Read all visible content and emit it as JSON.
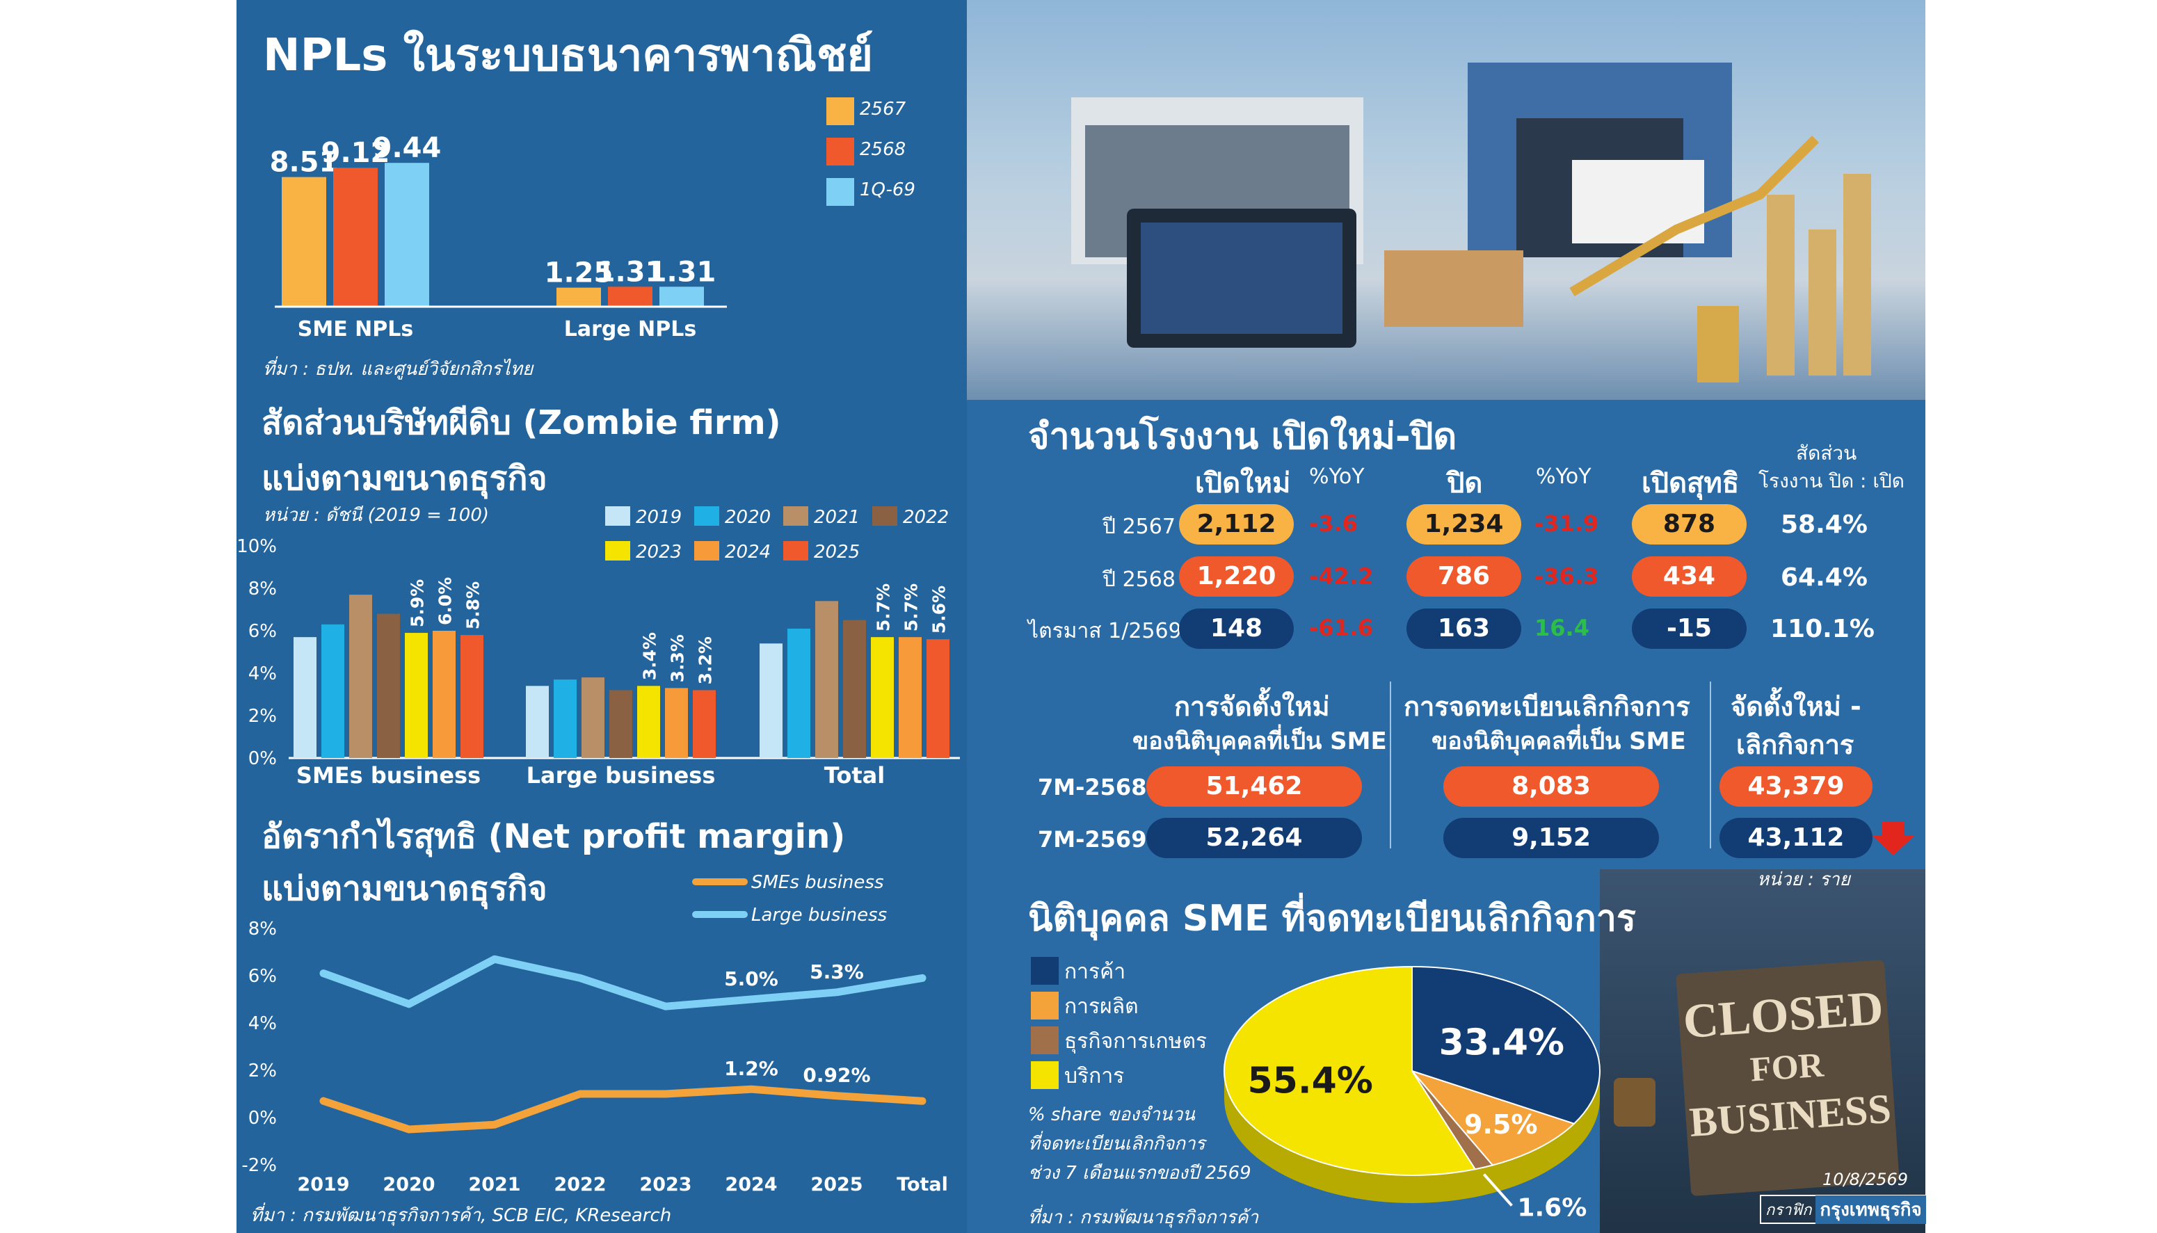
{
  "npl": {
    "title": "NPLs ในระบบธนาคารพาณิชย์",
    "source": "ที่มา : ธปท. และศูนย์วิจัยกสิกรไทย"
  },
  "zombie": {
    "title1": "สัดส่วนบริษัทผีดิบ (Zombie firm)",
    "title2": "แบ่งตามขนาดธุรกิจ",
    "unit": "หน่วย : ดัชนี (2019 = 100)"
  },
  "npm": {
    "title1": "อัตรากำไรสุทธิ (Net profit margin)",
    "title2": "แบ่งตามขนาดธุรกิจ",
    "source": "ที่มา : กรมพัฒนาธุรกิจการค้า, SCB EIC, KResearch"
  },
  "chart_data": [
    {
      "type": "bar",
      "categories": [
        "SME NPLs",
        "Large NPLs"
      ],
      "series": [
        {
          "name": "2567",
          "values": [
            8.51,
            1.25
          ],
          "color": "#f9b344"
        },
        {
          "name": "2568",
          "values": [
            9.12,
            1.31
          ],
          "color": "#f0592b"
        },
        {
          "name": "1Q-69",
          "values": [
            9.44,
            1.31
          ],
          "color": "#7fd0f5"
        }
      ],
      "ylim": [
        0,
        10.5
      ],
      "labels": [
        [
          "8.51",
          "1.25"
        ],
        [
          "9.12",
          "1.31"
        ],
        [
          "9.44",
          "1.31"
        ]
      ],
      "legend": "top-right"
    },
    {
      "type": "bar",
      "categories": [
        "SMEs business",
        "Large business",
        "Total"
      ],
      "series": [
        {
          "name": "2019",
          "values": [
            5.7,
            3.4,
            5.4
          ],
          "color": "#c5e6f7"
        },
        {
          "name": "2020",
          "values": [
            6.3,
            3.7,
            6.1
          ],
          "color": "#1fb1e6"
        },
        {
          "name": "2021",
          "values": [
            7.7,
            3.8,
            7.4
          ],
          "color": "#b98f68"
        },
        {
          "name": "2022",
          "values": [
            6.8,
            3.2,
            6.5
          ],
          "color": "#8a6142"
        },
        {
          "name": "2023",
          "values": [
            5.9,
            3.4,
            5.7
          ],
          "color": "#f5e400"
        },
        {
          "name": "2024",
          "values": [
            6.0,
            3.3,
            5.7
          ],
          "color": "#f79a3a"
        },
        {
          "name": "2025",
          "values": [
            5.8,
            3.2,
            5.6
          ],
          "color": "#f0592b"
        }
      ],
      "data_labels": {
        "2023": [
          "5.9%",
          "3.4%",
          "5.7%"
        ],
        "2024": [
          "6.0%",
          "3.3%",
          "5.7%"
        ],
        "2025": [
          "5.8%",
          "3.2%",
          "5.6%"
        ]
      },
      "yticks": [
        "0%",
        "2%",
        "4%",
        "6%",
        "8%",
        "10%"
      ],
      "ylim": [
        0,
        10
      ],
      "legend": "top-right"
    },
    {
      "type": "line",
      "x": [
        "2019",
        "2020",
        "2021",
        "2022",
        "2023",
        "2024",
        "2025",
        "Total"
      ],
      "series": [
        {
          "name": "SMEs business",
          "values": [
            0.7,
            -0.5,
            -0.3,
            1.0,
            1.0,
            1.2,
            0.92,
            0.7
          ],
          "color": "#f4a23a"
        },
        {
          "name": "Large business",
          "values": [
            6.1,
            4.8,
            6.7,
            5.9,
            4.7,
            5.0,
            5.3,
            5.9
          ],
          "color": "#7fd0f5"
        }
      ],
      "data_labels": [
        {
          "series": "Large business",
          "x": "2024",
          "text": "5.0%"
        },
        {
          "series": "Large business",
          "x": "2025",
          "text": "5.3%"
        },
        {
          "series": "SMEs business",
          "x": "2024",
          "text": "1.2%"
        },
        {
          "series": "SMEs business",
          "x": "2025",
          "text": "0.92%"
        }
      ],
      "yticks": [
        "-2%",
        "0%",
        "2%",
        "4%",
        "6%",
        "8%"
      ],
      "ylim": [
        -2,
        8
      ],
      "legend": "top-right"
    },
    {
      "type": "pie",
      "categories": [
        "การค้า",
        "การผลิต",
        "ธุรกิจการเกษตร",
        "บริการ"
      ],
      "values": [
        33.4,
        9.5,
        1.6,
        55.4
      ],
      "labels": [
        "33.4%",
        "9.5%",
        "1.6%",
        "55.4%"
      ],
      "colors": [
        "#123c74",
        "#f4a23a",
        "#a0704a",
        "#f5e400"
      ],
      "legend": "left"
    }
  ],
  "factory": {
    "title": "จำนวนโรงงาน เปิดใหม่-ปิด",
    "h_open": "เปิดใหม่",
    "h_yoy1": "%YoY",
    "h_close": "ปิด",
    "h_yoy2": "%YoY",
    "h_net": "เปิดสุทธิ",
    "h_ratio1": "สัดส่วน",
    "h_ratio2": "โรงงาน ปิด : เปิด",
    "rows": [
      {
        "label": "ปี 2567",
        "open": "2,112",
        "yoy1": "-3.6",
        "close": "1,234",
        "yoy2": "-31.9",
        "net": "878",
        "ratio": "58.4%"
      },
      {
        "label": "ปี 2568",
        "open": "1,220",
        "yoy1": "-42.2",
        "close": "786",
        "yoy2": "-36.3",
        "net": "434",
        "ratio": "64.4%"
      },
      {
        "label": "ไตรมาส 1/2569",
        "open": "148",
        "yoy1": "-61.6",
        "close": "163",
        "yoy2": "16.4",
        "net": "-15",
        "ratio": "110.1%"
      }
    ]
  },
  "sme_reg": {
    "h1a": "การจัดตั้งใหม่",
    "h1b": "ของนิติบุคคลที่เป็น SME",
    "h2a": "การจดทะเบียนเลิกกิจการ",
    "h2b": "ของนิติบุคคลที่เป็น SME",
    "h3a": "จัดตั้งใหม่ -",
    "h3b": "เลิกกิจการ",
    "rows": [
      {
        "label": "7M-2568",
        "new": "51,462",
        "closed": "8,083",
        "net": "43,379"
      },
      {
        "label": "7M-2569",
        "new": "52,264",
        "closed": "9,152",
        "net": "43,112"
      }
    ],
    "unit": "หน่วย : ราย"
  },
  "pie_section": {
    "title": "นิติบุคคล SME ที่จดทะเบียนเลิกกิจการ",
    "note1": "% share ของจำนวน",
    "note2": "ที่จดทะเบียนเลิกกิจการ",
    "note3": "ช่วง 7 เดือนแรกของปี 2569",
    "source": "ที่มา : กรมพัฒนาธุรกิจการค้า"
  },
  "sign": {
    "l1": "CLOSED",
    "l2": "FOR",
    "l3": "BUSINESS"
  },
  "footer": {
    "date": "10/8/2569",
    "credit_a": "กราฟิก",
    "credit_b": "กรุงเทพธุรกิจ"
  }
}
